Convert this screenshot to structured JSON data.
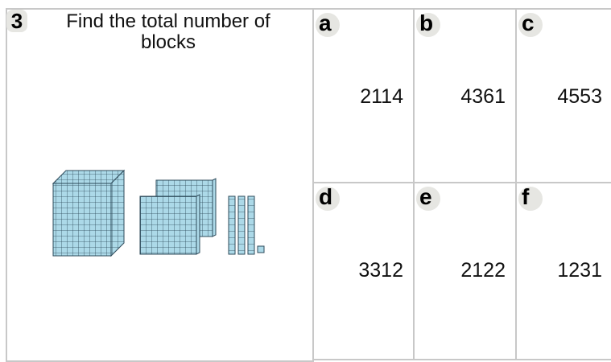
{
  "question": {
    "number": "3",
    "text": "Find the total number of blocks"
  },
  "options": [
    {
      "letter": "a",
      "value": 2114
    },
    {
      "letter": "b",
      "value": 4361
    },
    {
      "letter": "c",
      "value": 4553
    },
    {
      "letter": "d",
      "value": 3312
    },
    {
      "letter": "e",
      "value": 2122
    },
    {
      "letter": "f",
      "value": 1231
    }
  ]
}
